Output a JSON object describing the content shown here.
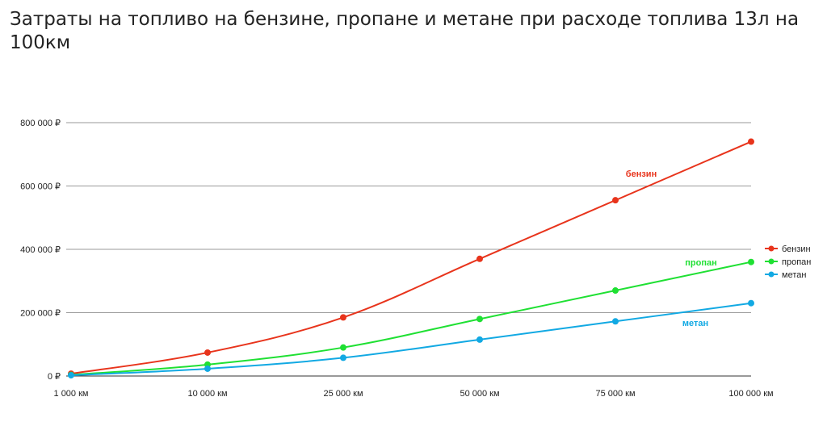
{
  "chart_data": {
    "type": "line",
    "title": "Затраты на топливо на бензине, пропане и метане при расходе топлива 13л на 100км",
    "categories": [
      "1 000 км",
      "10 000 км",
      "25 000 км",
      "50 000 км",
      "75 000 км",
      "100 000 км"
    ],
    "y_ticks": [
      "0 ₽",
      "200 000 ₽",
      "400 000 ₽",
      "600 000 ₽",
      "800 000 ₽"
    ],
    "ylim": [
      0,
      800000
    ],
    "grid": true,
    "legend_position": "right",
    "series": [
      {
        "name": "бензин",
        "color": "#e8341c",
        "values": [
          7400,
          74000,
          185000,
          370000,
          555000,
          740000
        ]
      },
      {
        "name": "пропан",
        "color": "#1fe033",
        "values": [
          3600,
          36000,
          90000,
          180000,
          270000,
          360000
        ]
      },
      {
        "name": "метан",
        "color": "#12a9e3",
        "values": [
          2300,
          23000,
          57500,
          115000,
          172500,
          230000
        ]
      }
    ]
  }
}
